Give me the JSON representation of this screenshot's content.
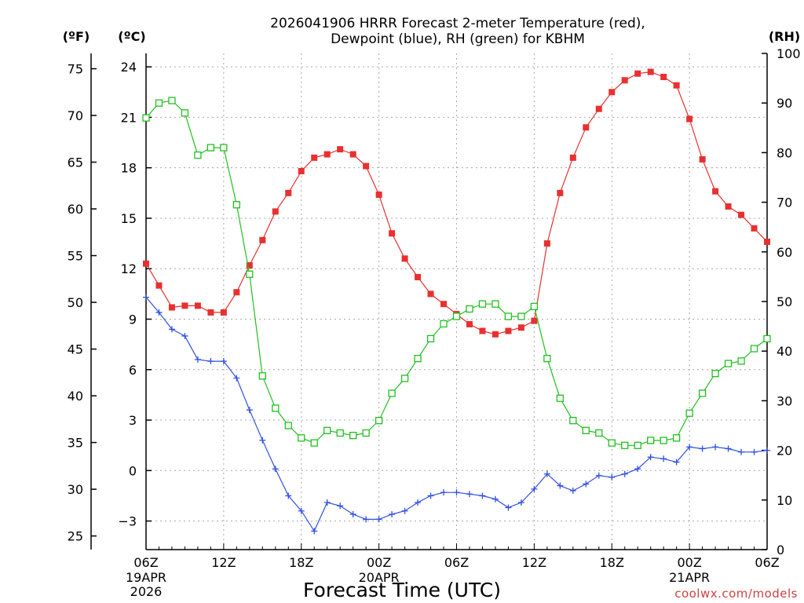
{
  "chart_data": {
    "type": "line",
    "title_line1": "2026041906 HRRR Forecast 2-meter Temperature (red),",
    "title_line2": "Dewpoint (blue), RH (green) for KBHM",
    "xlabel": "Forecast Time (UTC)",
    "credit": "coolwx.com/models",
    "units": {
      "fahrenheit": "(ºF)",
      "celsius": "(ºC)",
      "rh": "(RH)"
    },
    "x_hours_range": [
      0,
      48
    ],
    "x_ticks": [
      {
        "hour": 0,
        "label": "06Z",
        "date1": "19APR",
        "date2": "2026"
      },
      {
        "hour": 6,
        "label": "12Z"
      },
      {
        "hour": 12,
        "label": "18Z"
      },
      {
        "hour": 18,
        "label": "00Z",
        "date1": "20APR"
      },
      {
        "hour": 24,
        "label": "06Z"
      },
      {
        "hour": 30,
        "label": "12Z"
      },
      {
        "hour": 36,
        "label": "18Z"
      },
      {
        "hour": 42,
        "label": "00Z",
        "date1": "21APR"
      },
      {
        "hour": 48,
        "label": "06Z"
      }
    ],
    "celsius_range": [
      -4.7,
      24.8
    ],
    "celsius_ticks": [
      -3,
      0,
      3,
      6,
      9,
      12,
      15,
      18,
      21,
      24
    ],
    "fahrenheit_ticks": [
      25,
      30,
      35,
      40,
      45,
      50,
      55,
      60,
      65,
      70,
      75
    ],
    "rh_range": [
      0,
      100
    ],
    "rh_ticks": [
      0,
      10,
      20,
      30,
      40,
      50,
      60,
      70,
      80,
      90,
      100
    ],
    "series": [
      {
        "name": "Temperature",
        "unit": "C",
        "color": "#e83030",
        "marker": "filled-square",
        "values": [
          12.3,
          11.0,
          9.7,
          9.8,
          9.8,
          9.4,
          9.4,
          10.6,
          12.2,
          13.7,
          15.4,
          16.5,
          17.8,
          18.6,
          18.8,
          19.1,
          18.8,
          18.1,
          16.4,
          14.1,
          12.6,
          11.5,
          10.5,
          9.9,
          9.3,
          8.7,
          8.3,
          8.1,
          8.3,
          8.5,
          8.9,
          13.5,
          16.5,
          18.6,
          20.4,
          21.5,
          22.5,
          23.2,
          23.6,
          23.7,
          23.4,
          22.9,
          20.9,
          18.5,
          16.6,
          15.7,
          15.2,
          14.4,
          13.6
        ]
      },
      {
        "name": "Dewpoint",
        "unit": "C",
        "color": "#3050e0",
        "marker": "plus",
        "values": [
          10.3,
          9.4,
          8.4,
          8.0,
          6.6,
          6.5,
          6.5,
          5.5,
          3.6,
          1.8,
          0.1,
          -1.5,
          -2.4,
          -3.6,
          -1.9,
          -2.1,
          -2.6,
          -2.9,
          -2.9,
          -2.6,
          -2.4,
          -1.9,
          -1.5,
          -1.3,
          -1.3,
          -1.4,
          -1.5,
          -1.7,
          -2.2,
          -1.9,
          -1.1,
          -0.2,
          -0.9,
          -1.2,
          -0.8,
          -0.3,
          -0.4,
          -0.2,
          0.1,
          0.8,
          0.7,
          0.5,
          1.4,
          1.3,
          1.4,
          1.3,
          1.1,
          1.1,
          1.2
        ]
      },
      {
        "name": "RH",
        "unit": "%",
        "color": "#20c020",
        "marker": "open-square",
        "values": [
          87,
          90,
          90.5,
          88,
          79.5,
          81,
          81,
          69.5,
          55.5,
          35,
          28.5,
          25,
          22.5,
          21.5,
          24,
          23.5,
          23,
          23.5,
          26,
          31.5,
          34.5,
          38.5,
          42.5,
          45.5,
          47,
          48.5,
          49.5,
          49.5,
          47,
          47,
          49,
          38.5,
          30.5,
          26,
          24,
          23.5,
          21.5,
          21,
          21,
          22,
          22,
          22.5,
          27.5,
          31.5,
          35.5,
          37.5,
          38,
          40.5,
          42.5
        ]
      }
    ]
  }
}
